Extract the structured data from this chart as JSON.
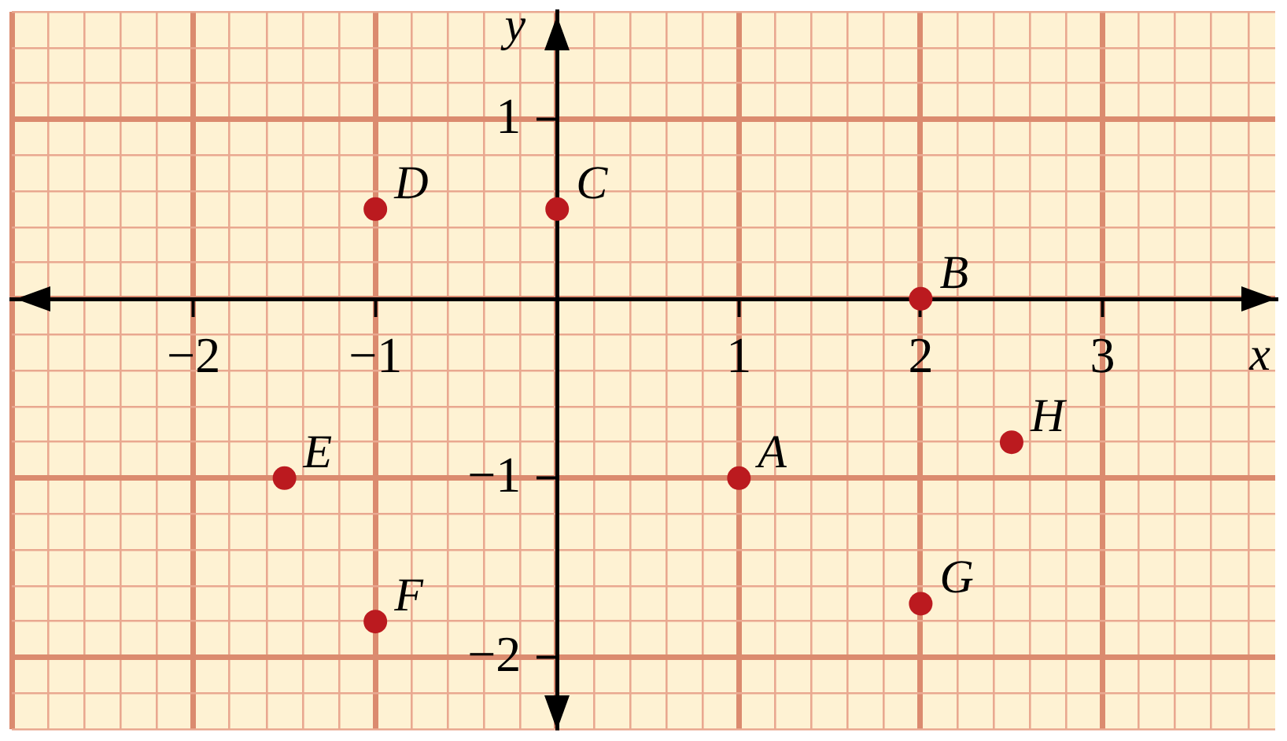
{
  "chart_data": {
    "type": "scatter",
    "xlabel": "x",
    "ylabel": "y",
    "x": [
      1,
      2,
      0,
      -1,
      -1.5,
      -1,
      2,
      2.5
    ],
    "values": [
      -1,
      0,
      0.5,
      0.5,
      -1,
      -1.8,
      -1.7,
      -0.8
    ],
    "color": "#bb1a1f",
    "marker": "circle",
    "xlim": [
      -3,
      3.95
    ],
    "ylim": [
      -2.4,
      1.6
    ],
    "xticks": [
      {
        "value": -3,
        "label": null
      },
      {
        "value": -2.8,
        "label": null
      },
      {
        "value": -2.6,
        "label": null
      },
      {
        "value": -2.4,
        "label": null
      },
      {
        "value": -2.2,
        "label": null
      },
      {
        "value": -2,
        "label": "−2"
      },
      {
        "value": -1.8,
        "label": null
      },
      {
        "value": -1.6,
        "label": null
      },
      {
        "value": -1.4,
        "label": null
      },
      {
        "value": -1.2,
        "label": null
      },
      {
        "value": -1,
        "label": "−1"
      },
      {
        "value": -0.8,
        "label": null
      },
      {
        "value": -0.6,
        "label": null
      },
      {
        "value": -0.4,
        "label": null
      },
      {
        "value": -0.2,
        "label": null
      },
      {
        "value": 0,
        "label": null
      },
      {
        "value": 0.2,
        "label": null
      },
      {
        "value": 0.4,
        "label": null
      },
      {
        "value": 0.6,
        "label": null
      },
      {
        "value": 0.8,
        "label": null
      },
      1,
      {
        "value": 1.2,
        "label": null
      },
      {
        "value": 1.4,
        "label": null
      },
      {
        "value": 1.6,
        "label": null
      },
      {
        "value": 1.8,
        "label": null
      },
      2,
      {
        "value": 2.2,
        "label": null
      },
      {
        "value": 2.4,
        "label": null
      },
      {
        "value": 2.6,
        "label": null
      },
      {
        "value": 2.8,
        "label": null
      },
      3,
      {
        "value": 3.2,
        "label": null
      },
      {
        "value": 3.4,
        "label": null
      },
      {
        "value": 3.6,
        "label": null
      },
      {
        "value": 3.8,
        "label": null
      }
    ],
    "yticks": [
      {
        "value": -2.4,
        "label": null
      },
      {
        "value": -2.2,
        "label": null
      },
      {
        "value": -2,
        "label": "−2"
      },
      {
        "value": -1.8,
        "label": null
      },
      {
        "value": -1.6,
        "label": null
      },
      {
        "value": -1.4,
        "label": null
      },
      {
        "value": -1.2,
        "label": null
      },
      {
        "value": -1,
        "label": "−1"
      },
      {
        "value": -0.8,
        "label": null
      },
      {
        "value": -0.6,
        "label": null
      },
      {
        "value": -0.4,
        "label": null
      },
      {
        "value": -0.2,
        "label": null
      },
      {
        "value": 0,
        "label": null
      },
      {
        "value": 0.2,
        "label": null
      },
      {
        "value": 0.4,
        "label": null
      },
      {
        "value": 0.6,
        "label": null
      },
      {
        "value": 0.8,
        "label": null
      },
      1,
      {
        "value": 1.2,
        "label": null
      },
      {
        "value": 1.4,
        "label": null
      },
      {
        "value": 1.6,
        "label": null
      }
    ],
    "grid": true,
    "annotations": [
      {
        "text": "A",
        "x": 1,
        "y": -1
      },
      {
        "text": "B",
        "x": 2,
        "y": 0
      },
      {
        "text": "C",
        "x": 0,
        "y": 0.5
      },
      {
        "text": "D",
        "x": -1,
        "y": 0.5
      },
      {
        "text": "E",
        "x": -1.5,
        "y": -1
      },
      {
        "text": "F",
        "x": -1,
        "y": -1.8
      },
      {
        "text": "G",
        "x": 2,
        "y": -1.7
      },
      {
        "text": "H",
        "x": 2.5,
        "y": -0.8
      }
    ]
  }
}
